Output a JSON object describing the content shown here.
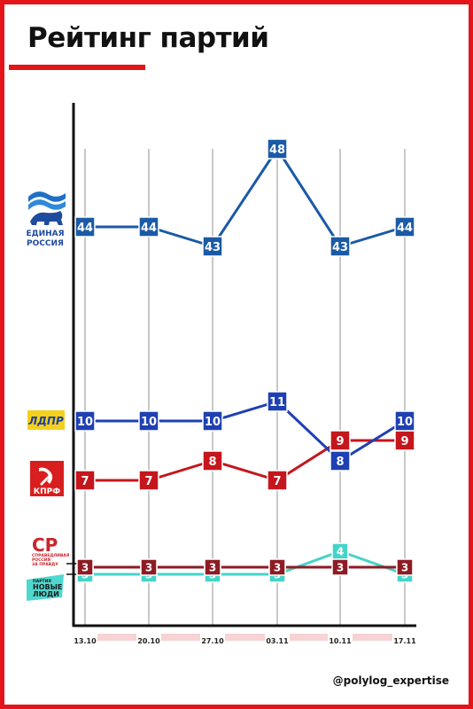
{
  "title": "Рейтинг партий",
  "footer": "@polylog_expertise",
  "colors": {
    "frame": "#e3151a",
    "axis": "#111111",
    "gridline": "#c8c8c8",
    "date_band": "#f7d3d3"
  },
  "logos": [
    {
      "party": "Единая Россия",
      "lines": [
        "ЕДИНАЯ",
        "РОССИЯ"
      ],
      "icon": "bear-flag-icon",
      "color": "#1f4b9e"
    },
    {
      "party": "ЛДПР",
      "lines": [
        "ЛДПР"
      ],
      "icon": "ldpr-badge-icon",
      "color": "#1f3fa0",
      "bg": "#f4d11c"
    },
    {
      "party": "КПРФ",
      "lines": [
        "КПРФ"
      ],
      "icon": "hammer-sickle-icon",
      "color": "#ffffff",
      "bg": "#d81e1e"
    },
    {
      "party": "Справедливая Россия",
      "lines": [
        "СР",
        "СПРАВЕДЛИВАЯ",
        "РОССИЯ",
        "ЗА ПРАВДУ"
      ],
      "icon": "sr-logo-icon",
      "color": "#c8262c"
    },
    {
      "party": "Новые люди",
      "lines": [
        "ПАРТИЯ",
        "НОВЫЕ",
        "ЛЮДИ"
      ],
      "icon": "new-people-icon",
      "color": "#1b1b1b",
      "bg": "#4fd8cf"
    }
  ],
  "chart_data": {
    "type": "line",
    "x": [
      "13.10",
      "20.10",
      "27.10",
      "03.11",
      "10.11",
      "17.11"
    ],
    "series": [
      {
        "name": "Единая Россия",
        "values": [
          44,
          44,
          43,
          48,
          43,
          44
        ],
        "color": "#1a5aa6"
      },
      {
        "name": "ЛДПР",
        "values": [
          10,
          10,
          10,
          11,
          8,
          10
        ],
        "color": "#1e40b4"
      },
      {
        "name": "КПРФ",
        "values": [
          7,
          7,
          8,
          7,
          9,
          9
        ],
        "color": "#c4161c"
      },
      {
        "name": "Справедливая Россия",
        "values": [
          3,
          3,
          3,
          3,
          3,
          3
        ],
        "color": "#8e1b24"
      },
      {
        "name": "Новые люди",
        "values": [
          3,
          3,
          3,
          3,
          4,
          3
        ],
        "color": "#45d4c9"
      }
    ],
    "grid": "vertical",
    "legend": "left (party logos)"
  }
}
